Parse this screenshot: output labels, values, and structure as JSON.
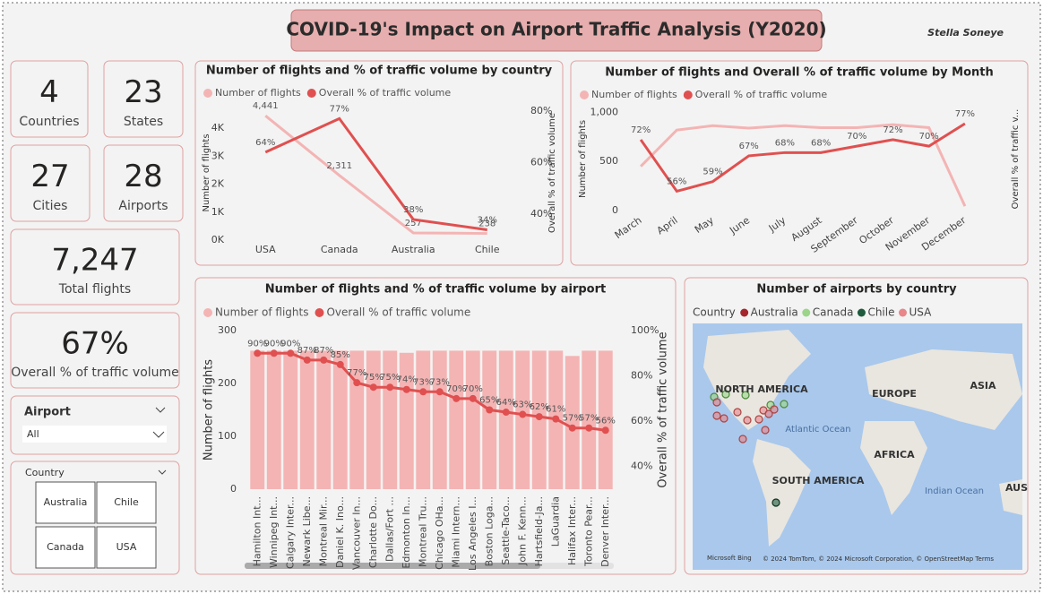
{
  "header": {
    "title": "COVID-19's Impact on Airport Traffic Analysis (Y2020)",
    "author": "Stella Soneye"
  },
  "kpis": [
    {
      "value": "4",
      "label": "Countries"
    },
    {
      "value": "23",
      "label": "States"
    },
    {
      "value": "27",
      "label": "Cities"
    },
    {
      "value": "28",
      "label": "Airports"
    },
    {
      "value": "7,247",
      "label": "Total flights"
    },
    {
      "value": "67%",
      "label": "Overall % of traffic volume"
    }
  ],
  "slicers": {
    "airport": {
      "title": "Airport",
      "selection": "All"
    },
    "country": {
      "title": "Country",
      "options": [
        "Australia",
        "Chile",
        "Canada",
        "USA"
      ]
    }
  },
  "chart_data": [
    {
      "type": "line",
      "title": "Number of flights and % of traffic volume by country",
      "categories": [
        "USA",
        "Canada",
        "Australia",
        "Chile"
      ],
      "series": [
        {
          "name": "Number of flights",
          "color": "#f4b4b4",
          "values": [
            4441,
            2311,
            257,
            238
          ],
          "value_labels": [
            "4,441",
            "2,311",
            "257",
            "238"
          ]
        },
        {
          "name": "Overall % of traffic volume",
          "color": "#e05050",
          "axis": "y2",
          "values": [
            64,
            77,
            38,
            34
          ],
          "value_labels": [
            "64%",
            "77%",
            "38%",
            "34%"
          ]
        }
      ],
      "ylabel": "Number of flights",
      "y2label": "Overall % of traffic volume",
      "ylim": [
        0,
        4800
      ],
      "yticks": [
        {
          "value": 0,
          "label": "0K"
        },
        {
          "value": 1000,
          "label": "1K"
        },
        {
          "value": 2000,
          "label": "2K"
        },
        {
          "value": 3000,
          "label": "3K"
        },
        {
          "value": 4000,
          "label": "4K"
        }
      ],
      "y2lim": [
        30,
        82
      ],
      "y2ticks": [
        {
          "value": 40,
          "label": "40%"
        },
        {
          "value": 60,
          "label": "60%"
        },
        {
          "value": 80,
          "label": "80%"
        }
      ],
      "legend": "top-left"
    },
    {
      "type": "line",
      "title": "Number of flights and Overall % of traffic volume by Month",
      "categories": [
        "March",
        "April",
        "May",
        "June",
        "July",
        "August",
        "September",
        "October",
        "November",
        "December"
      ],
      "series": [
        {
          "name": "Number of flights",
          "color": "#f4b4b4",
          "values": [
            450,
            820,
            865,
            840,
            865,
            845,
            845,
            875,
            845,
            45
          ]
        },
        {
          "name": "Overall % of traffic volume",
          "color": "#e05050",
          "axis": "y2",
          "values": [
            72,
            56,
            59,
            67,
            68,
            68,
            70,
            72,
            70,
            77
          ],
          "value_labels": [
            "72%",
            "56%",
            "59%",
            "67%",
            "68%",
            "68%",
            "70%",
            "72%",
            "70%",
            "77%"
          ]
        }
      ],
      "ylabel": "Number of flights",
      "y2label": "Overall % of traffic v...",
      "ylim": [
        0,
        1050
      ],
      "yticks": [
        0,
        500,
        {
          "value": 1000,
          "label": "1,000"
        }
      ],
      "y2lim": [
        50,
        82
      ],
      "legend": "top-left"
    },
    {
      "type": "combo",
      "title": "Number of flights and % of traffic volume by airport",
      "categories": [
        "Hamilton Int...",
        "Winnipeg Int...",
        "Calgary Inter...",
        "Newark Libe...",
        "Montreal Mir...",
        "Daniel K. Ino...",
        "Vancouver In...",
        "Charlotte Do...",
        "Dallas/Fort ...",
        "Edmonton In...",
        "Montreal Tru...",
        "Chicago OHa...",
        "Miami Intern...",
        "Los Angeles I...",
        "Boston Loga...",
        "Seattle-Taco...",
        "John F. Kenn...",
        "Hartsfield-Ja...",
        "LaGuardia",
        "Halifax Inter...",
        "Toronto Pear...",
        "Denver Inter..."
      ],
      "series": [
        {
          "name": "Number of flights",
          "color": "#f4b4b4",
          "kind": "bar",
          "values": [
            262,
            262,
            262,
            262,
            262,
            262,
            262,
            262,
            262,
            258,
            262,
            262,
            262,
            262,
            262,
            262,
            262,
            262,
            262,
            252,
            262,
            262
          ]
        },
        {
          "name": "Overall % of traffic volume",
          "color": "#e05050",
          "kind": "line",
          "markers": true,
          "axis": "y2",
          "values": [
            90,
            90,
            90,
            87,
            87,
            85,
            77,
            75,
            75,
            74,
            73,
            73,
            70,
            70,
            65,
            64,
            63,
            62,
            61,
            57,
            57,
            56
          ],
          "value_labels": [
            "90%",
            "90%",
            "90%",
            "87%",
            "87%",
            "85%",
            "77%",
            "75%",
            "75%",
            "74%",
            "73%",
            "73%",
            "70%",
            "70%",
            "65%",
            "64%",
            "63%",
            "62%",
            "61%",
            "57%",
            "57%",
            "56%"
          ]
        }
      ],
      "ylabel": "Number of flights",
      "y2label": "Overall % of traffic volume",
      "ylim": [
        0,
        300
      ],
      "yticks": [
        0,
        100,
        200,
        300
      ],
      "y2lim": [
        30,
        100
      ],
      "y2ticks": [
        {
          "value": 40,
          "label": "40%"
        },
        {
          "value": 60,
          "label": "60%"
        },
        {
          "value": 80,
          "label": "80%"
        },
        {
          "value": 100,
          "label": "100%"
        }
      ],
      "legend": "top-left"
    },
    {
      "type": "map",
      "title": "Number of airports by country",
      "legend_title": "Country",
      "series": [
        {
          "name": "Australia",
          "color": "#a4262c"
        },
        {
          "name": "Canada",
          "color": "#9cd58a"
        },
        {
          "name": "Chile",
          "color": "#1e5b3c"
        },
        {
          "name": "USA",
          "color": "#e8868a"
        }
      ],
      "labels": [
        "NORTH AMERICA",
        "EUROPE",
        "ASIA",
        "Atlantic Ocean",
        "AFRICA",
        "SOUTH AMERICA",
        "Indian Ocean",
        "AUS"
      ],
      "attribution": "© 2024 TomTom, © 2024 Microsoft Corporation, © OpenStreetMap  Terms",
      "provider": "Microsoft Bing"
    }
  ]
}
